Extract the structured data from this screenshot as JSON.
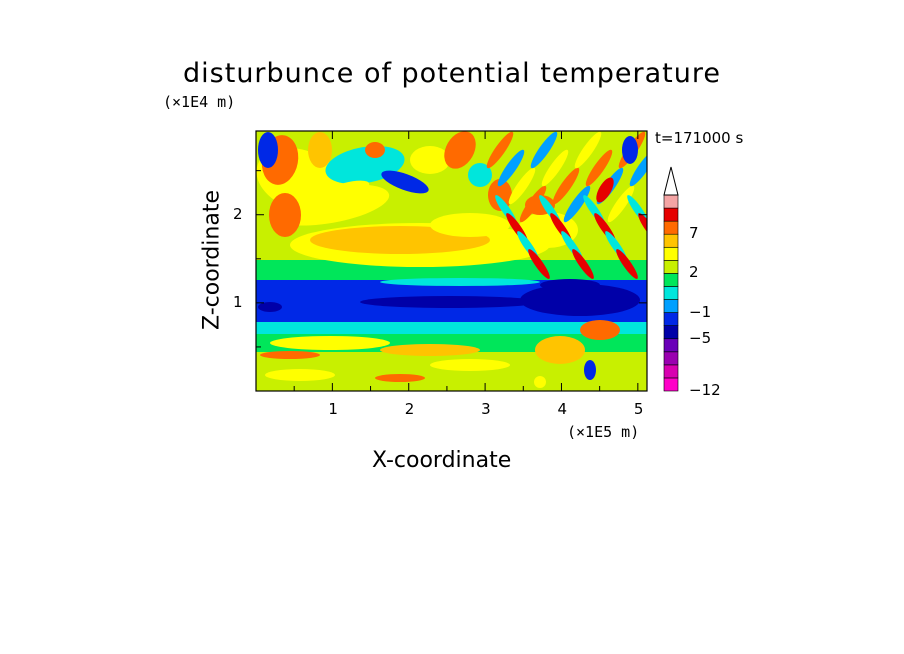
{
  "chart_data": {
    "type": "heatmap",
    "title": "disturbunce of potential temperature",
    "xlabel": "X-coordinate",
    "ylabel": "Z-coordinate",
    "x_unit": "(×1E5 m)",
    "y_unit": "(×1E4 m)",
    "time_label": "t=171000 s",
    "xlim": [
      0,
      5.12
    ],
    "ylim": [
      0,
      2.95
    ],
    "x_ticks": [
      "1",
      "2",
      "3",
      "4",
      "5"
    ],
    "y_ticks": [
      "1",
      "2"
    ],
    "colorbar": {
      "levels": [
        -12,
        -10,
        -8,
        -7,
        -5,
        -3,
        -1,
        0,
        1,
        2,
        3,
        5,
        7,
        9,
        11
      ],
      "labels": [
        "-12",
        "-5",
        "-1",
        "2",
        "7"
      ],
      "colors": [
        "#ff00c8",
        "#d800b0",
        "#9a00b0",
        "#6a00b8",
        "#0000a8",
        "#0028e6",
        "#00a0ff",
        "#00e6dc",
        "#00e65a",
        "#c8f000",
        "#ffff00",
        "#ffc400",
        "#ff6a00",
        "#e60000",
        "#f4a4a4"
      ],
      "extend_max": true
    }
  }
}
